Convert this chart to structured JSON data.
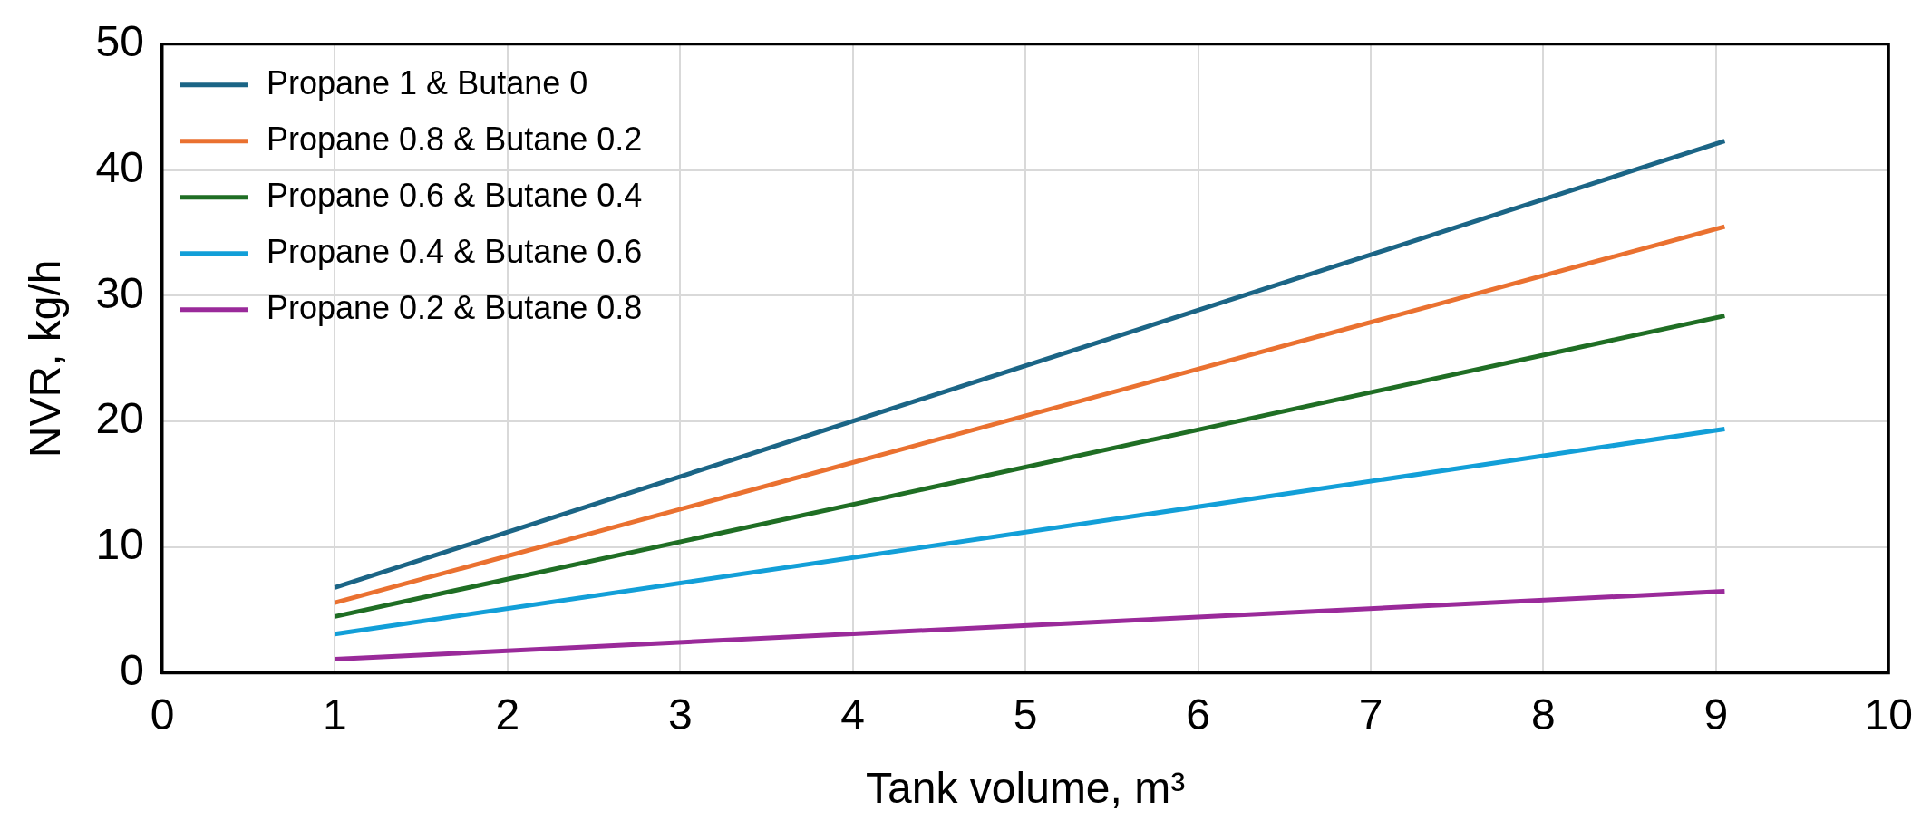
{
  "chart_data": {
    "type": "line",
    "xlabel": "Tank volume, m³",
    "ylabel": "NVR, kg/h",
    "x": [
      1,
      9.05
    ],
    "xlim": [
      0,
      10
    ],
    "xticks": [
      0,
      1,
      2,
      3,
      4,
      5,
      6,
      7,
      8,
      9,
      10
    ],
    "ylim": [
      0,
      50
    ],
    "yticks": [
      0,
      10,
      20,
      30,
      40,
      50
    ],
    "grid": true,
    "legend": "top left",
    "marker": "none",
    "line_style": "solid",
    "series": [
      {
        "name": "Propane 1 & Butane 0",
        "color": "#1b6586",
        "values": [
          6.8,
          42.3
        ]
      },
      {
        "name": "Propane 0.8 & Butane 0.2",
        "color": "#ea7130",
        "values": [
          5.6,
          35.5
        ]
      },
      {
        "name": "Propane 0.6 & Butane 0.4",
        "color": "#1f6e24",
        "values": [
          4.5,
          28.4
        ]
      },
      {
        "name": "Propane 0.4 & Butane 0.6",
        "color": "#129fd8",
        "values": [
          3.1,
          19.4
        ]
      },
      {
        "name": "Propane 0.2 & Butane 0.8",
        "color": "#9a2a9a",
        "values": [
          1.1,
          6.5
        ]
      }
    ]
  }
}
